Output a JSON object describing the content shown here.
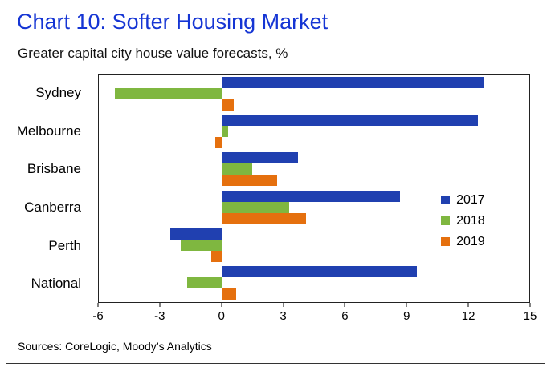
{
  "title": "Chart 10: Softer Housing Market",
  "subtitle": "Greater capital city house value forecasts, %",
  "source": "Sources: CoreLogic, Moody’s Analytics",
  "colors": {
    "title_blue": "#1535d4",
    "bar_2017": "#2040b0",
    "bar_2018": "#7fb740",
    "bar_2019": "#e5700e",
    "axis": "#222222"
  },
  "chart_data": {
    "type": "bar",
    "orientation": "horizontal",
    "title": "Chart 10: Softer Housing Market",
    "subtitle": "Greater capital city house value forecasts, %",
    "xlabel": "",
    "ylabel": "",
    "categories": [
      "Sydney",
      "Melbourne",
      "Brisbane",
      "Canberra",
      "Perth",
      "National"
    ],
    "series": [
      {
        "name": "2017",
        "color": "#2040b0",
        "values": [
          12.8,
          12.5,
          3.7,
          8.7,
          -2.5,
          9.5
        ]
      },
      {
        "name": "2018",
        "color": "#7fb740",
        "values": [
          -5.2,
          0.3,
          1.5,
          3.3,
          -2.0,
          -1.7
        ]
      },
      {
        "name": "2019",
        "color": "#e5700e",
        "values": [
          0.6,
          -0.3,
          2.7,
          4.1,
          -0.5,
          0.7
        ]
      }
    ],
    "xlim": [
      -6,
      15
    ],
    "xticks": [
      -6,
      -3,
      0,
      3,
      6,
      9,
      12,
      15
    ],
    "grid": false,
    "legend_position": "right-inside"
  }
}
